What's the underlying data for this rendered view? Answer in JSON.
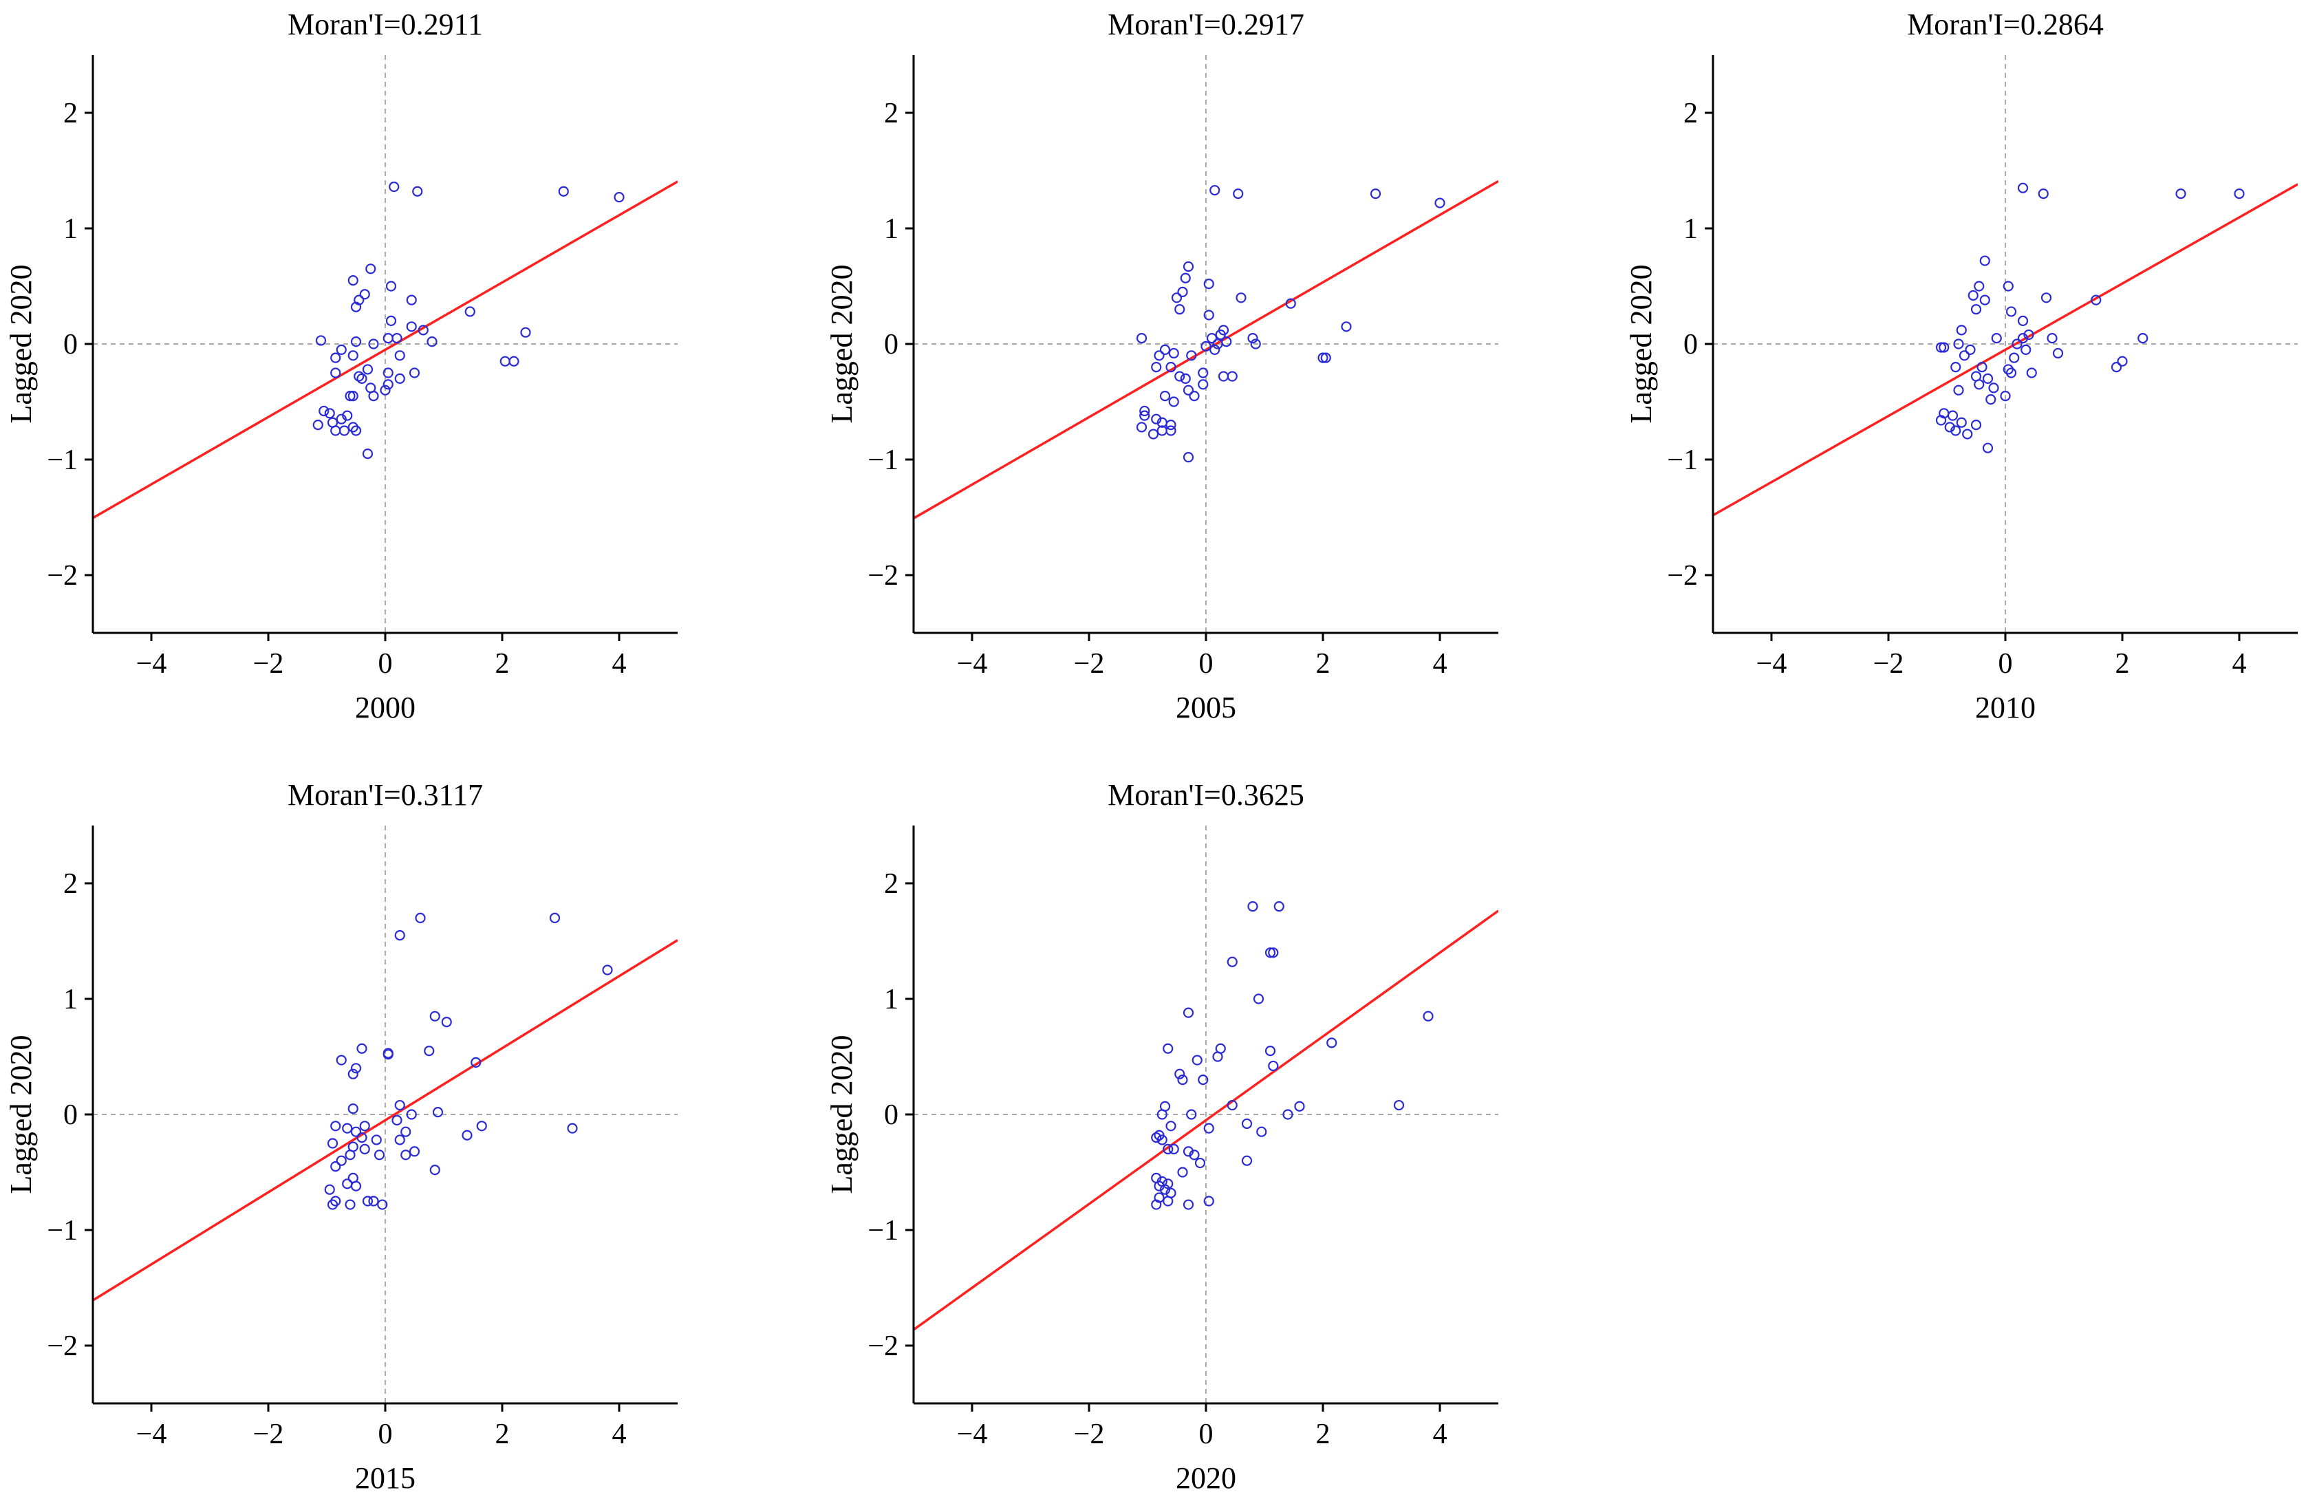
{
  "chart_data": [
    {
      "type": "scatter",
      "title": "Moran'I=0.2911",
      "xlabel": "2000",
      "ylabel": "Lagged 2020",
      "xlim": [
        -5,
        5
      ],
      "ylim": [
        -2.5,
        2.5
      ],
      "xticks": [
        -4,
        -2,
        0,
        2,
        4
      ],
      "yticks": [
        -2,
        -1,
        0,
        1,
        2
      ],
      "xtick_labels": [
        "−4",
        "−2",
        "0",
        "2",
        "4"
      ],
      "ytick_labels": [
        "−2",
        "−1",
        "0",
        "1",
        "2"
      ],
      "fit_line": {
        "slope": 0.2911,
        "intercept": -0.05
      },
      "colors": {
        "points": "#2b2bd6",
        "fit": "#ff2020",
        "ref": "#aaaaaa",
        "axis": "#000000"
      },
      "points": [
        [
          0.15,
          1.36
        ],
        [
          0.55,
          1.32
        ],
        [
          3.05,
          1.32
        ],
        [
          4.0,
          1.27
        ],
        [
          -0.25,
          0.65
        ],
        [
          -0.55,
          0.55
        ],
        [
          0.1,
          0.5
        ],
        [
          -0.35,
          0.43
        ],
        [
          -0.45,
          0.38
        ],
        [
          0.45,
          0.38
        ],
        [
          -0.5,
          0.32
        ],
        [
          1.45,
          0.28
        ],
        [
          0.1,
          0.2
        ],
        [
          -1.1,
          0.03
        ],
        [
          0.45,
          0.15
        ],
        [
          0.65,
          0.12
        ],
        [
          2.4,
          0.1
        ],
        [
          0.2,
          0.05
        ],
        [
          0.8,
          0.02
        ],
        [
          -0.5,
          0.02
        ],
        [
          -0.2,
          0.0
        ],
        [
          -0.75,
          -0.05
        ],
        [
          -0.55,
          -0.1
        ],
        [
          -0.85,
          -0.12
        ],
        [
          0.25,
          -0.1
        ],
        [
          2.05,
          -0.15
        ],
        [
          2.2,
          -0.15
        ],
        [
          -0.3,
          -0.22
        ],
        [
          -0.85,
          -0.25
        ],
        [
          0.05,
          -0.25
        ],
        [
          0.5,
          -0.25
        ],
        [
          -0.45,
          -0.28
        ],
        [
          -0.4,
          -0.3
        ],
        [
          0.25,
          -0.3
        ],
        [
          0.05,
          -0.35
        ],
        [
          -0.25,
          -0.38
        ],
        [
          -0.6,
          -0.45
        ],
        [
          -0.2,
          -0.45
        ],
        [
          -0.55,
          -0.45
        ],
        [
          0.0,
          -0.4
        ],
        [
          -1.05,
          -0.58
        ],
        [
          -0.95,
          -0.6
        ],
        [
          -0.65,
          -0.62
        ],
        [
          -0.75,
          -0.65
        ],
        [
          -0.9,
          -0.68
        ],
        [
          -0.55,
          -0.72
        ],
        [
          -1.15,
          -0.7
        ],
        [
          -0.7,
          -0.75
        ],
        [
          -0.85,
          -0.75
        ],
        [
          -0.5,
          -0.75
        ],
        [
          -0.3,
          -0.95
        ],
        [
          0.05,
          0.05
        ]
      ]
    },
    {
      "type": "scatter",
      "title": "Moran'I=0.2917",
      "xlabel": "2005",
      "ylabel": "Lagged 2020",
      "xlim": [
        -5,
        5
      ],
      "ylim": [
        -2.5,
        2.5
      ],
      "xticks": [
        -4,
        -2,
        0,
        2,
        4
      ],
      "yticks": [
        -2,
        -1,
        0,
        1,
        2
      ],
      "xtick_labels": [
        "−4",
        "−2",
        "0",
        "2",
        "4"
      ],
      "ytick_labels": [
        "−2",
        "−1",
        "0",
        "1",
        "2"
      ],
      "fit_line": {
        "slope": 0.2917,
        "intercept": -0.05
      },
      "colors": {
        "points": "#2b2bd6",
        "fit": "#ff2020",
        "ref": "#aaaaaa",
        "axis": "#000000"
      },
      "points": [
        [
          0.15,
          1.33
        ],
        [
          0.55,
          1.3
        ],
        [
          2.9,
          1.3
        ],
        [
          4.0,
          1.22
        ],
        [
          -0.3,
          0.67
        ],
        [
          -0.35,
          0.57
        ],
        [
          0.05,
          0.52
        ],
        [
          -0.4,
          0.45
        ],
        [
          -0.5,
          0.4
        ],
        [
          0.6,
          0.4
        ],
        [
          1.45,
          0.35
        ],
        [
          -0.45,
          0.3
        ],
        [
          0.05,
          0.25
        ],
        [
          2.4,
          0.15
        ],
        [
          0.3,
          0.12
        ],
        [
          0.25,
          0.08
        ],
        [
          -1.1,
          0.05
        ],
        [
          0.8,
          0.05
        ],
        [
          0.85,
          0.0
        ],
        [
          0.2,
          0.0
        ],
        [
          0.35,
          0.02
        ],
        [
          0.0,
          -0.02
        ],
        [
          -0.7,
          -0.05
        ],
        [
          -0.55,
          -0.08
        ],
        [
          -0.8,
          -0.1
        ],
        [
          0.15,
          -0.05
        ],
        [
          -0.25,
          -0.1
        ],
        [
          2.0,
          -0.12
        ],
        [
          2.05,
          -0.12
        ],
        [
          -0.6,
          -0.2
        ],
        [
          -0.85,
          -0.2
        ],
        [
          -0.05,
          -0.25
        ],
        [
          -0.45,
          -0.28
        ],
        [
          -0.35,
          -0.3
        ],
        [
          0.3,
          -0.28
        ],
        [
          0.45,
          -0.28
        ],
        [
          -0.05,
          -0.35
        ],
        [
          -0.3,
          -0.4
        ],
        [
          -0.7,
          -0.45
        ],
        [
          -0.55,
          -0.5
        ],
        [
          -0.2,
          -0.45
        ],
        [
          -1.05,
          -0.58
        ],
        [
          -1.05,
          -0.62
        ],
        [
          -0.85,
          -0.65
        ],
        [
          -0.75,
          -0.68
        ],
        [
          -0.6,
          -0.7
        ],
        [
          -1.1,
          -0.72
        ],
        [
          -0.75,
          -0.75
        ],
        [
          -0.9,
          -0.78
        ],
        [
          -0.6,
          -0.75
        ],
        [
          -0.3,
          -0.98
        ],
        [
          0.1,
          0.05
        ]
      ]
    },
    {
      "type": "scatter",
      "title": "Moran'I=0.2864",
      "xlabel": "2010",
      "ylabel": "Lagged 2020",
      "xlim": [
        -5,
        5
      ],
      "ylim": [
        -2.5,
        2.5
      ],
      "xticks": [
        -4,
        -2,
        0,
        2,
        4
      ],
      "yticks": [
        -2,
        -1,
        0,
        1,
        2
      ],
      "xtick_labels": [
        "−4",
        "−2",
        "0",
        "2",
        "4"
      ],
      "ytick_labels": [
        "−2",
        "−1",
        "0",
        "1",
        "2"
      ],
      "fit_line": {
        "slope": 0.2864,
        "intercept": -0.05
      },
      "colors": {
        "points": "#2b2bd6",
        "fit": "#ff2020",
        "ref": "#aaaaaa",
        "axis": "#000000"
      },
      "points": [
        [
          0.3,
          1.35
        ],
        [
          0.65,
          1.3
        ],
        [
          3.0,
          1.3
        ],
        [
          4.0,
          1.3
        ],
        [
          -0.35,
          0.72
        ],
        [
          -0.45,
          0.5
        ],
        [
          0.05,
          0.5
        ],
        [
          -0.55,
          0.42
        ],
        [
          -0.35,
          0.38
        ],
        [
          0.7,
          0.4
        ],
        [
          1.55,
          0.38
        ],
        [
          -0.5,
          0.3
        ],
        [
          0.1,
          0.28
        ],
        [
          0.3,
          0.2
        ],
        [
          -0.75,
          0.12
        ],
        [
          2.35,
          0.05
        ],
        [
          0.8,
          0.05
        ],
        [
          0.4,
          0.08
        ],
        [
          0.3,
          0.05
        ],
        [
          -0.15,
          0.05
        ],
        [
          -1.05,
          -0.03
        ],
        [
          -1.1,
          -0.03
        ],
        [
          -0.8,
          0.0
        ],
        [
          -0.6,
          -0.05
        ],
        [
          0.35,
          -0.05
        ],
        [
          -0.7,
          -0.1
        ],
        [
          0.9,
          -0.08
        ],
        [
          0.15,
          -0.12
        ],
        [
          -0.4,
          -0.2
        ],
        [
          2.0,
          -0.15
        ],
        [
          1.9,
          -0.2
        ],
        [
          -0.85,
          -0.2
        ],
        [
          0.05,
          -0.22
        ],
        [
          0.1,
          -0.25
        ],
        [
          0.45,
          -0.25
        ],
        [
          -0.5,
          -0.28
        ],
        [
          -0.3,
          -0.3
        ],
        [
          -0.45,
          -0.35
        ],
        [
          -0.2,
          -0.38
        ],
        [
          -0.8,
          -0.4
        ],
        [
          0.0,
          -0.45
        ],
        [
          -0.25,
          -0.48
        ],
        [
          -1.05,
          -0.6
        ],
        [
          -0.9,
          -0.62
        ],
        [
          -1.1,
          -0.66
        ],
        [
          -0.75,
          -0.68
        ],
        [
          -0.5,
          -0.7
        ],
        [
          -0.95,
          -0.72
        ],
        [
          -0.85,
          -0.75
        ],
        [
          -0.65,
          -0.78
        ],
        [
          -0.3,
          -0.9
        ],
        [
          0.2,
          0.0
        ]
      ]
    },
    {
      "type": "scatter",
      "title": "Moran'I=0.3117",
      "xlabel": "2015",
      "ylabel": "Lagged 2020",
      "xlim": [
        -5,
        5
      ],
      "ylim": [
        -2.5,
        2.5
      ],
      "xticks": [
        -4,
        -2,
        0,
        2,
        4
      ],
      "yticks": [
        -2,
        -1,
        0,
        1,
        2
      ],
      "xtick_labels": [
        "−4",
        "−2",
        "0",
        "2",
        "4"
      ],
      "ytick_labels": [
        "−2",
        "−1",
        "0",
        "1",
        "2"
      ],
      "fit_line": {
        "slope": 0.3117,
        "intercept": -0.05
      },
      "colors": {
        "points": "#2b2bd6",
        "fit": "#ff2020",
        "ref": "#aaaaaa",
        "axis": "#000000"
      },
      "points": [
        [
          0.6,
          1.7
        ],
        [
          2.9,
          1.7
        ],
        [
          0.25,
          1.55
        ],
        [
          3.8,
          1.25
        ],
        [
          0.85,
          0.85
        ],
        [
          1.05,
          0.8
        ],
        [
          -0.4,
          0.57
        ],
        [
          0.05,
          0.53
        ],
        [
          0.75,
          0.55
        ],
        [
          -0.75,
          0.47
        ],
        [
          1.55,
          0.45
        ],
        [
          -0.5,
          0.4
        ],
        [
          -0.55,
          0.35
        ],
        [
          0.25,
          0.08
        ],
        [
          -0.55,
          0.05
        ],
        [
          0.9,
          0.02
        ],
        [
          0.45,
          0.0
        ],
        [
          0.2,
          -0.05
        ],
        [
          -0.35,
          -0.1
        ],
        [
          -0.85,
          -0.1
        ],
        [
          -0.65,
          -0.12
        ],
        [
          1.65,
          -0.1
        ],
        [
          3.2,
          -0.12
        ],
        [
          -0.5,
          -0.15
        ],
        [
          0.35,
          -0.15
        ],
        [
          1.4,
          -0.18
        ],
        [
          -0.4,
          -0.2
        ],
        [
          -0.15,
          -0.22
        ],
        [
          0.25,
          -0.22
        ],
        [
          -0.9,
          -0.25
        ],
        [
          -0.55,
          -0.28
        ],
        [
          -0.35,
          -0.3
        ],
        [
          -0.6,
          -0.35
        ],
        [
          0.5,
          -0.32
        ],
        [
          -0.1,
          -0.35
        ],
        [
          0.35,
          -0.35
        ],
        [
          -0.75,
          -0.4
        ],
        [
          -0.85,
          -0.45
        ],
        [
          0.85,
          -0.48
        ],
        [
          -0.55,
          -0.55
        ],
        [
          -0.65,
          -0.6
        ],
        [
          -0.5,
          -0.62
        ],
        [
          -0.95,
          -0.65
        ],
        [
          -0.85,
          -0.75
        ],
        [
          -0.3,
          -0.75
        ],
        [
          -0.2,
          -0.75
        ],
        [
          -0.9,
          -0.78
        ],
        [
          -0.6,
          -0.78
        ],
        [
          -0.05,
          -0.78
        ],
        [
          0.05,
          0.52
        ]
      ]
    },
    {
      "type": "scatter",
      "title": "Moran'I=0.3625",
      "xlabel": "2020",
      "ylabel": "Lagged 2020",
      "xlim": [
        -5,
        5
      ],
      "ylim": [
        -2.5,
        2.5
      ],
      "xticks": [
        -4,
        -2,
        0,
        2,
        4
      ],
      "yticks": [
        -2,
        -1,
        0,
        1,
        2
      ],
      "xtick_labels": [
        "−4",
        "−2",
        "0",
        "2",
        "4"
      ],
      "ytick_labels": [
        "−2",
        "−1",
        "0",
        "1",
        "2"
      ],
      "fit_line": {
        "slope": 0.3625,
        "intercept": -0.05
      },
      "colors": {
        "points": "#2b2bd6",
        "fit": "#ff2020",
        "ref": "#aaaaaa",
        "axis": "#000000"
      },
      "points": [
        [
          0.8,
          1.8
        ],
        [
          1.25,
          1.8
        ],
        [
          1.1,
          1.4
        ],
        [
          1.15,
          1.4
        ],
        [
          0.45,
          1.32
        ],
        [
          0.9,
          1.0
        ],
        [
          -0.3,
          0.88
        ],
        [
          3.8,
          0.85
        ],
        [
          2.15,
          0.62
        ],
        [
          -0.65,
          0.57
        ],
        [
          0.25,
          0.57
        ],
        [
          1.1,
          0.55
        ],
        [
          -0.15,
          0.47
        ],
        [
          0.2,
          0.5
        ],
        [
          1.15,
          0.42
        ],
        [
          -0.45,
          0.35
        ],
        [
          -0.4,
          0.3
        ],
        [
          -0.05,
          0.3
        ],
        [
          0.45,
          0.08
        ],
        [
          3.3,
          0.08
        ],
        [
          1.6,
          0.07
        ],
        [
          -0.7,
          0.07
        ],
        [
          -0.75,
          0.0
        ],
        [
          -0.25,
          0.0
        ],
        [
          1.4,
          0.0
        ],
        [
          0.7,
          -0.08
        ],
        [
          -0.6,
          -0.1
        ],
        [
          0.05,
          -0.12
        ],
        [
          0.95,
          -0.15
        ],
        [
          -0.8,
          -0.18
        ],
        [
          -0.85,
          -0.2
        ],
        [
          -0.75,
          -0.22
        ],
        [
          -0.65,
          -0.3
        ],
        [
          -0.55,
          -0.3
        ],
        [
          -0.3,
          -0.32
        ],
        [
          -0.2,
          -0.35
        ],
        [
          -0.1,
          -0.42
        ],
        [
          0.7,
          -0.4
        ],
        [
          -0.4,
          -0.5
        ],
        [
          -0.85,
          -0.55
        ],
        [
          -0.75,
          -0.58
        ],
        [
          -0.65,
          -0.6
        ],
        [
          -0.8,
          -0.62
        ],
        [
          -0.7,
          -0.65
        ],
        [
          -0.6,
          -0.68
        ],
        [
          -0.8,
          -0.72
        ],
        [
          -0.65,
          -0.75
        ],
        [
          -0.3,
          -0.78
        ],
        [
          0.05,
          -0.75
        ],
        [
          -0.85,
          -0.78
        ]
      ]
    }
  ]
}
